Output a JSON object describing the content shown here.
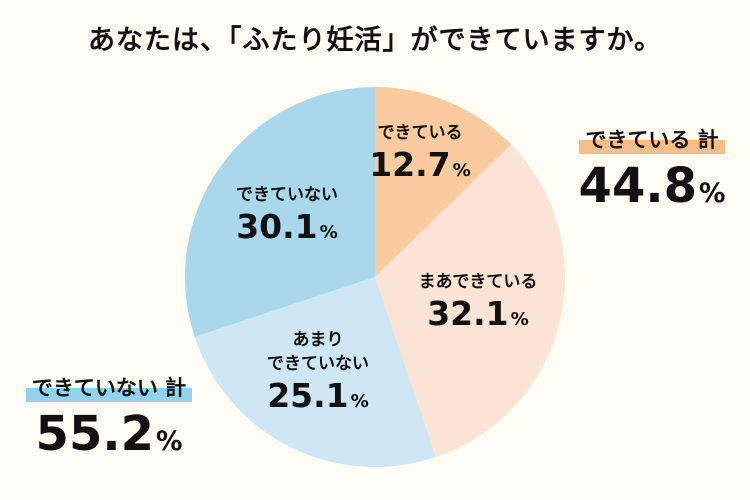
{
  "chart_data": {
    "type": "pie",
    "title": "あなたは、「ふたり妊活」ができていますか。",
    "start": "top",
    "direction": "clockwise",
    "slices": [
      {
        "label": "できている",
        "value": 12.7,
        "display": "12.7",
        "color": "#F9CB9F"
      },
      {
        "label": "まあできている",
        "value": 32.1,
        "display": "32.1",
        "color": "#FBE3D5"
      },
      {
        "label": "あまり\nできていない",
        "label_lines": [
          "あまり",
          "できていない"
        ],
        "value": 25.1,
        "display": "25.1",
        "color": "#CFE7F4"
      },
      {
        "label": "できていない",
        "value": 30.1,
        "display": "30.1",
        "color": "#A9D8EC"
      }
    ],
    "unit": "%",
    "totals": [
      {
        "label": "できている 計",
        "value": "44.8",
        "color": "#F8BE8A"
      },
      {
        "label": "できていない 計",
        "value": "55.2",
        "color": "#92D2EC"
      }
    ]
  }
}
